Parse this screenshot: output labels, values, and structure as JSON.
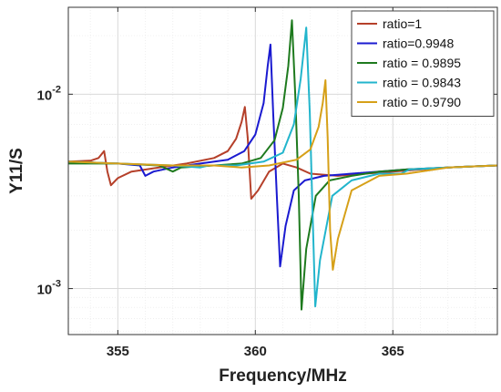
{
  "chart_data": {
    "type": "line",
    "xlabel": "Frequency/MHz",
    "ylabel": "Y11/S",
    "xlim": [
      353.2,
      368.8
    ],
    "ylim": [
      0.00058,
      0.028
    ],
    "yscale": "log",
    "grid": true,
    "legend_position": "top-right",
    "x_ticks": [
      355,
      360,
      365
    ],
    "y_ticks": [
      {
        "value": 0.001,
        "base": "10",
        "exp": "-3"
      },
      {
        "value": 0.01,
        "base": "10",
        "exp": "-2"
      }
    ],
    "series": [
      {
        "name": "ratio=1",
        "color": "#b5402a",
        "points": [
          [
            353.2,
            0.0045
          ],
          [
            354.0,
            0.00455
          ],
          [
            354.3,
            0.0047
          ],
          [
            354.5,
            0.0051
          ],
          [
            354.62,
            0.004
          ],
          [
            354.75,
            0.0034
          ],
          [
            355.0,
            0.0037
          ],
          [
            355.5,
            0.004
          ],
          [
            356.5,
            0.0042
          ],
          [
            357.5,
            0.0044
          ],
          [
            358.5,
            0.0047
          ],
          [
            359.0,
            0.0051
          ],
          [
            359.3,
            0.0059
          ],
          [
            359.5,
            0.0072
          ],
          [
            359.62,
            0.0086
          ],
          [
            359.72,
            0.006
          ],
          [
            359.85,
            0.0029
          ],
          [
            360.1,
            0.0032
          ],
          [
            360.5,
            0.004
          ],
          [
            361.0,
            0.0044
          ],
          [
            361.5,
            0.0042
          ],
          [
            362.0,
            0.0039
          ],
          [
            363.0,
            0.0038
          ],
          [
            364.0,
            0.0039
          ],
          [
            365.0,
            0.004
          ],
          [
            366.0,
            0.0041
          ],
          [
            367.0,
            0.0042
          ],
          [
            368.8,
            0.0043
          ]
        ]
      },
      {
        "name": "ratio=0.9948",
        "color": "#1a1ad0",
        "points": [
          [
            353.2,
            0.0045
          ],
          [
            355.0,
            0.0044
          ],
          [
            355.8,
            0.0043
          ],
          [
            356.0,
            0.0038
          ],
          [
            356.3,
            0.004
          ],
          [
            357.0,
            0.0042
          ],
          [
            358.0,
            0.0044
          ],
          [
            359.0,
            0.0046
          ],
          [
            359.6,
            0.0051
          ],
          [
            360.0,
            0.0062
          ],
          [
            360.3,
            0.009
          ],
          [
            360.45,
            0.014
          ],
          [
            360.55,
            0.018
          ],
          [
            360.65,
            0.008
          ],
          [
            360.78,
            0.003
          ],
          [
            360.9,
            0.0013
          ],
          [
            361.1,
            0.0021
          ],
          [
            361.4,
            0.0032
          ],
          [
            361.8,
            0.0036
          ],
          [
            362.5,
            0.0038
          ],
          [
            363.5,
            0.0039
          ],
          [
            364.5,
            0.004
          ],
          [
            365.5,
            0.0041
          ],
          [
            367.0,
            0.0042
          ],
          [
            368.8,
            0.0043
          ]
        ]
      },
      {
        "name": "ratio = 0.9895",
        "color": "#1e7a1e",
        "points": [
          [
            353.2,
            0.0044
          ],
          [
            355.0,
            0.0044
          ],
          [
            356.5,
            0.0043
          ],
          [
            357.0,
            0.004
          ],
          [
            357.3,
            0.0042
          ],
          [
            358.5,
            0.0043
          ],
          [
            359.5,
            0.0044
          ],
          [
            360.2,
            0.0047
          ],
          [
            360.7,
            0.0058
          ],
          [
            361.0,
            0.0085
          ],
          [
            361.2,
            0.014
          ],
          [
            361.33,
            0.024
          ],
          [
            361.45,
            0.01
          ],
          [
            361.58,
            0.003
          ],
          [
            361.68,
            0.00078
          ],
          [
            361.85,
            0.0016
          ],
          [
            362.2,
            0.003
          ],
          [
            362.7,
            0.0036
          ],
          [
            363.5,
            0.0038
          ],
          [
            364.5,
            0.004
          ],
          [
            365.5,
            0.0041
          ],
          [
            367.0,
            0.0042
          ],
          [
            368.8,
            0.0043
          ]
        ]
      },
      {
        "name": "ratio = 0.9843",
        "color": "#22b5cc",
        "points": [
          [
            353.2,
            0.0045
          ],
          [
            355.0,
            0.0044
          ],
          [
            357.0,
            0.0043
          ],
          [
            358.0,
            0.0042
          ],
          [
            358.3,
            0.0043
          ],
          [
            359.3,
            0.0043
          ],
          [
            360.3,
            0.0045
          ],
          [
            361.0,
            0.005
          ],
          [
            361.4,
            0.007
          ],
          [
            361.65,
            0.012
          ],
          [
            361.85,
            0.022
          ],
          [
            361.98,
            0.008
          ],
          [
            362.08,
            0.0025
          ],
          [
            362.18,
            0.00081
          ],
          [
            362.35,
            0.0014
          ],
          [
            362.8,
            0.003
          ],
          [
            363.5,
            0.0036
          ],
          [
            364.5,
            0.0039
          ],
          [
            365.3,
            0.0039
          ],
          [
            365.6,
            0.0041
          ],
          [
            367.0,
            0.0042
          ],
          [
            368.8,
            0.0043
          ]
        ]
      },
      {
        "name": "ratio = 0.9790",
        "color": "#d6a018",
        "points": [
          [
            353.2,
            0.0045
          ],
          [
            355.0,
            0.0044
          ],
          [
            357.0,
            0.0043
          ],
          [
            358.5,
            0.0043
          ],
          [
            359.5,
            0.0042
          ],
          [
            360.5,
            0.0043
          ],
          [
            361.5,
            0.0046
          ],
          [
            362.0,
            0.0052
          ],
          [
            362.3,
            0.0068
          ],
          [
            362.45,
            0.009
          ],
          [
            362.55,
            0.0118
          ],
          [
            362.63,
            0.006
          ],
          [
            362.72,
            0.002
          ],
          [
            362.82,
            0.00125
          ],
          [
            363.0,
            0.0018
          ],
          [
            363.5,
            0.0032
          ],
          [
            364.5,
            0.0038
          ],
          [
            365.5,
            0.0039
          ],
          [
            366.0,
            0.004
          ],
          [
            367.0,
            0.0042
          ],
          [
            368.8,
            0.0043
          ]
        ]
      }
    ]
  }
}
